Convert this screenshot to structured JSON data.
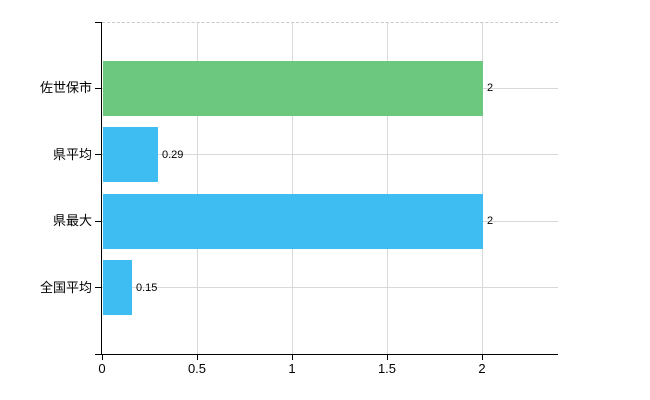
{
  "chart_data": {
    "type": "bar",
    "orientation": "horizontal",
    "title": "",
    "xlabel": "",
    "ylabel": "",
    "categories": [
      "佐世保市",
      "県平均",
      "県最大",
      "全国平均"
    ],
    "values": [
      2,
      0.29,
      2,
      0.15
    ],
    "value_labels": [
      "2",
      "0.29",
      "2",
      "0.15"
    ],
    "bar_colors": [
      "#6cc87e",
      "#3dbdf1",
      "#3dbdf1",
      "#3dbdf1"
    ],
    "xlim": [
      0,
      2.4
    ],
    "x_ticks": [
      0,
      0.5,
      1,
      1.5,
      2
    ],
    "x_tick_labels": [
      "0",
      "0.5",
      "1",
      "1.5",
      "2"
    ],
    "grid": true,
    "legend": false,
    "colors": {
      "green_bar": "#6cc87e",
      "blue_bar": "#3dbdf1",
      "gridline": "#d9d9d9",
      "top_border_dashed": "#c9c9c9",
      "axis": "#000000",
      "text": "#000000",
      "background": "#ffffff"
    }
  }
}
